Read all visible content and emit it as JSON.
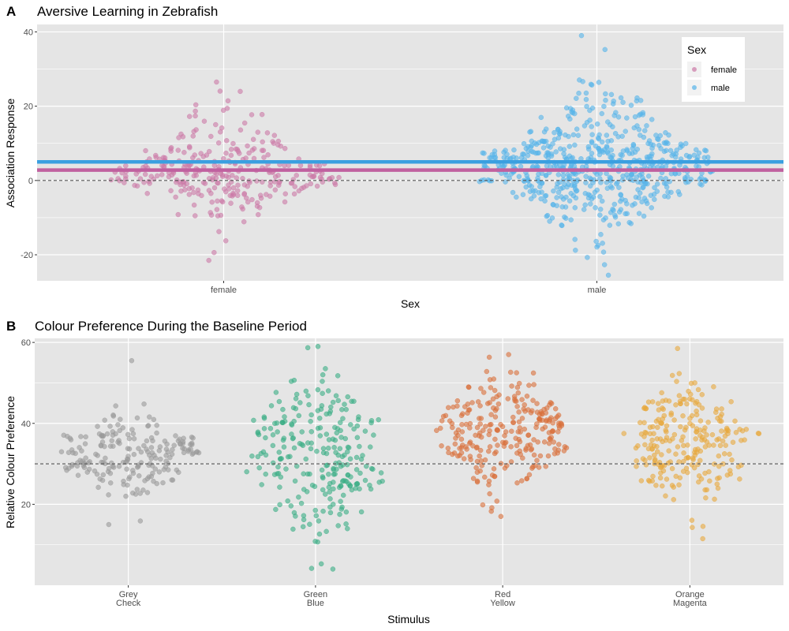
{
  "colors": {
    "panel_bg": "#e5e5e5",
    "grid": "#ffffff",
    "female": "#cc79a7",
    "male": "#56b4e9",
    "female_mean_line": "#c0609f",
    "male_mean_line": "#3a9fe0",
    "grey": "#999999",
    "green": "#3aae85",
    "red": "#d9703a",
    "orange": "#e8a93e",
    "ref_line": "#555555"
  },
  "chart_data": [
    {
      "panel_label": "A",
      "type": "scatter",
      "subtype": "beeswarm",
      "title": "Aversive Learning in Zebrafish",
      "xlabel": "Sex",
      "ylabel": "Association Response",
      "categories": [
        "female",
        "male"
      ],
      "ylim": [
        -27,
        42
      ],
      "yticks": [
        -20,
        0,
        20,
        40
      ],
      "reference_line": 0,
      "group_means": [
        {
          "category": "female",
          "value": 2.8
        },
        {
          "category": "male",
          "value": 5.0
        }
      ],
      "legend": {
        "title": "Sex",
        "entries": [
          "female",
          "male"
        ],
        "placement": "top-right"
      },
      "series": [
        {
          "name": "female",
          "color_key": "female",
          "summary": {
            "n": 300,
            "mean": 2.8,
            "sd": 8.0,
            "min": -21.5,
            "max": 26.5
          },
          "peaks": [
            0,
            3
          ]
        },
        {
          "name": "male",
          "color_key": "male",
          "summary": {
            "n": 600,
            "mean": 5.0,
            "sd": 10.0,
            "min": -25.5,
            "max": 39
          },
          "peaks": [
            0,
            5
          ]
        }
      ],
      "grid": true
    },
    {
      "panel_label": "B",
      "type": "scatter",
      "subtype": "beeswarm",
      "title": "Colour Preference During the Baseline Period",
      "xlabel": "Stimulus",
      "ylabel": "Relative Colour Preference",
      "categories": [
        [
          "Grey",
          "Check"
        ],
        [
          "Green",
          "Blue"
        ],
        [
          "Red",
          "Yellow"
        ],
        [
          "Orange",
          "Magenta"
        ]
      ],
      "ylim": [
        0,
        61
      ],
      "yticks": [
        20,
        40,
        60
      ],
      "reference_line": 30,
      "series": [
        {
          "name": "Grey Check",
          "color_key": "grey",
          "summary": {
            "n": 200,
            "mean": 32,
            "sd": 5,
            "min": 15,
            "max": 55.5
          },
          "peaks": [
            31
          ]
        },
        {
          "name": "Green Blue",
          "color_key": "green",
          "summary": {
            "n": 250,
            "mean": 33,
            "sd": 12,
            "min": 4,
            "max": 59
          },
          "peaks": [
            28,
            39
          ]
        },
        {
          "name": "Red Yellow",
          "color_key": "red",
          "summary": {
            "n": 260,
            "mean": 38,
            "sd": 7,
            "min": 17,
            "max": 57
          },
          "peaks": [
            34
          ]
        },
        {
          "name": "Orange Magenta",
          "color_key": "orange",
          "summary": {
            "n": 240,
            "mean": 35,
            "sd": 7,
            "min": 11.5,
            "max": 58.5
          },
          "peaks": [
            33
          ]
        }
      ],
      "grid": true
    }
  ]
}
